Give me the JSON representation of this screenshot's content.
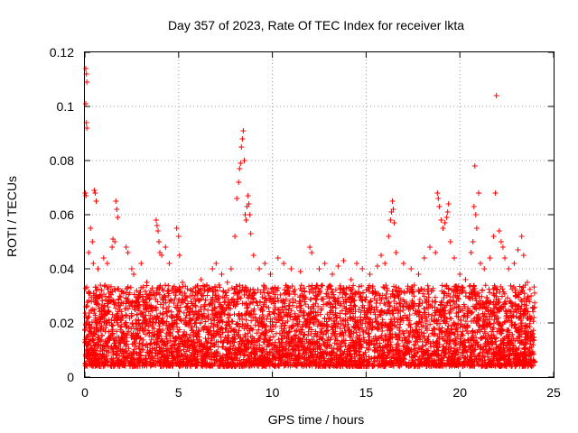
{
  "chart_data": {
    "type": "scatter",
    "title": "Day 357 of 2023, Rate Of TEC Index for receiver lkta",
    "xlabel": "GPS time / hours",
    "ylabel": "ROTI / TECUs",
    "xlim": [
      0,
      25
    ],
    "ylim": [
      0,
      0.12
    ],
    "xticks": [
      0,
      5,
      10,
      15,
      20,
      25
    ],
    "xtick_labels": [
      "0",
      "5",
      "10",
      "15",
      "20",
      "25"
    ],
    "yticks": [
      0,
      0.02,
      0.04,
      0.06,
      0.08,
      0.1,
      0.12
    ],
    "ytick_labels": [
      "0",
      "0.02",
      "0.04",
      "0.06",
      "0.08",
      "0.1",
      "0.12"
    ],
    "grid": true,
    "marker": "+",
    "color": "#ff0000",
    "series": [
      {
        "name": "ROTI",
        "points": [
          [
            0.05,
            0.114
          ],
          [
            0.08,
            0.112
          ],
          [
            0.1,
            0.109
          ],
          [
            0.05,
            0.101
          ],
          [
            0.08,
            0.094
          ],
          [
            0.1,
            0.092
          ],
          [
            0.02,
            0.068
          ],
          [
            0.06,
            0.067
          ],
          [
            0.5,
            0.069
          ],
          [
            0.55,
            0.068
          ],
          [
            0.6,
            0.065
          ],
          [
            0.3,
            0.055
          ],
          [
            0.4,
            0.05
          ],
          [
            0.2,
            0.046
          ],
          [
            0.45,
            0.042
          ],
          [
            0.7,
            0.04
          ],
          [
            1.5,
            0.051
          ],
          [
            1.6,
            0.05
          ],
          [
            1.45,
            0.048
          ],
          [
            1.65,
            0.065
          ],
          [
            1.7,
            0.062
          ],
          [
            1.75,
            0.059
          ],
          [
            1.0,
            0.044
          ],
          [
            1.2,
            0.042
          ],
          [
            2.2,
            0.048
          ],
          [
            2.3,
            0.046
          ],
          [
            2.5,
            0.04
          ],
          [
            2.6,
            0.038
          ],
          [
            3.0,
            0.042
          ],
          [
            3.3,
            0.035
          ],
          [
            3.8,
            0.058
          ],
          [
            3.85,
            0.056
          ],
          [
            3.9,
            0.054
          ],
          [
            3.95,
            0.05
          ],
          [
            4.0,
            0.046
          ],
          [
            4.1,
            0.045
          ],
          [
            4.3,
            0.048
          ],
          [
            4.5,
            0.042
          ],
          [
            4.9,
            0.055
          ],
          [
            5.0,
            0.052
          ],
          [
            5.05,
            0.045
          ],
          [
            5.2,
            0.035
          ],
          [
            5.6,
            0.03
          ],
          [
            5.9,
            0.028
          ],
          [
            6.2,
            0.036
          ],
          [
            6.5,
            0.034
          ],
          [
            6.8,
            0.04
          ],
          [
            7.0,
            0.042
          ],
          [
            7.3,
            0.038
          ],
          [
            7.6,
            0.035
          ],
          [
            7.8,
            0.04
          ],
          [
            8.0,
            0.052
          ],
          [
            8.1,
            0.066
          ],
          [
            8.2,
            0.072
          ],
          [
            8.25,
            0.077
          ],
          [
            8.3,
            0.079
          ],
          [
            8.35,
            0.085
          ],
          [
            8.4,
            0.088
          ],
          [
            8.45,
            0.091
          ],
          [
            8.5,
            0.08
          ],
          [
            8.55,
            0.06
          ],
          [
            8.6,
            0.058
          ],
          [
            8.65,
            0.063
          ],
          [
            8.7,
            0.067
          ],
          [
            8.75,
            0.064
          ],
          [
            8.8,
            0.06
          ],
          [
            8.85,
            0.053
          ],
          [
            9.0,
            0.045
          ],
          [
            9.3,
            0.04
          ],
          [
            9.6,
            0.042
          ],
          [
            9.9,
            0.038
          ],
          [
            10.3,
            0.044
          ],
          [
            10.6,
            0.042
          ],
          [
            11.0,
            0.04
          ],
          [
            11.5,
            0.039
          ],
          [
            12.0,
            0.048
          ],
          [
            12.1,
            0.046
          ],
          [
            12.5,
            0.04
          ],
          [
            12.8,
            0.042
          ],
          [
            13.2,
            0.038
          ],
          [
            13.5,
            0.041
          ],
          [
            13.8,
            0.043
          ],
          [
            14.2,
            0.036
          ],
          [
            14.5,
            0.042
          ],
          [
            14.8,
            0.04
          ],
          [
            15.2,
            0.038
          ],
          [
            15.6,
            0.041
          ],
          [
            15.8,
            0.045
          ],
          [
            16.0,
            0.042
          ],
          [
            16.2,
            0.052
          ],
          [
            16.3,
            0.058
          ],
          [
            16.35,
            0.061
          ],
          [
            16.4,
            0.065
          ],
          [
            16.45,
            0.062
          ],
          [
            16.5,
            0.057
          ],
          [
            16.6,
            0.046
          ],
          [
            17.0,
            0.042
          ],
          [
            17.4,
            0.04
          ],
          [
            17.8,
            0.038
          ],
          [
            18.1,
            0.044
          ],
          [
            18.4,
            0.048
          ],
          [
            18.7,
            0.046
          ],
          [
            18.8,
            0.068
          ],
          [
            18.85,
            0.066
          ],
          [
            18.9,
            0.063
          ],
          [
            19.0,
            0.058
          ],
          [
            19.1,
            0.055
          ],
          [
            19.2,
            0.057
          ],
          [
            19.3,
            0.059
          ],
          [
            19.35,
            0.061
          ],
          [
            19.4,
            0.064
          ],
          [
            19.5,
            0.05
          ],
          [
            19.7,
            0.044
          ],
          [
            20.0,
            0.038
          ],
          [
            20.3,
            0.036
          ],
          [
            20.6,
            0.046
          ],
          [
            20.7,
            0.05
          ],
          [
            20.75,
            0.063
          ],
          [
            20.8,
            0.078
          ],
          [
            20.85,
            0.06
          ],
          [
            20.9,
            0.055
          ],
          [
            21.0,
            0.068
          ],
          [
            21.1,
            0.042
          ],
          [
            21.3,
            0.04
          ],
          [
            21.6,
            0.044
          ],
          [
            21.8,
            0.052
          ],
          [
            21.9,
            0.068
          ],
          [
            21.95,
            0.104
          ],
          [
            22.1,
            0.054
          ],
          [
            22.2,
            0.05
          ],
          [
            22.3,
            0.048
          ],
          [
            22.4,
            0.044
          ],
          [
            22.6,
            0.04
          ],
          [
            22.9,
            0.042
          ],
          [
            23.1,
            0.047
          ],
          [
            23.3,
            0.052
          ],
          [
            23.4,
            0.045
          ],
          [
            23.6,
            0.035
          ],
          [
            23.8,
            0.03
          ],
          [
            23.95,
            0.022
          ]
        ]
      }
    ],
    "noise_band": {
      "description": "dense ROTI values between roughly 0.005 and 0.03 TECU across the full day",
      "x_range": [
        0,
        24
      ],
      "y_range": [
        0.004,
        0.034
      ],
      "density_per_hour": 220
    }
  }
}
